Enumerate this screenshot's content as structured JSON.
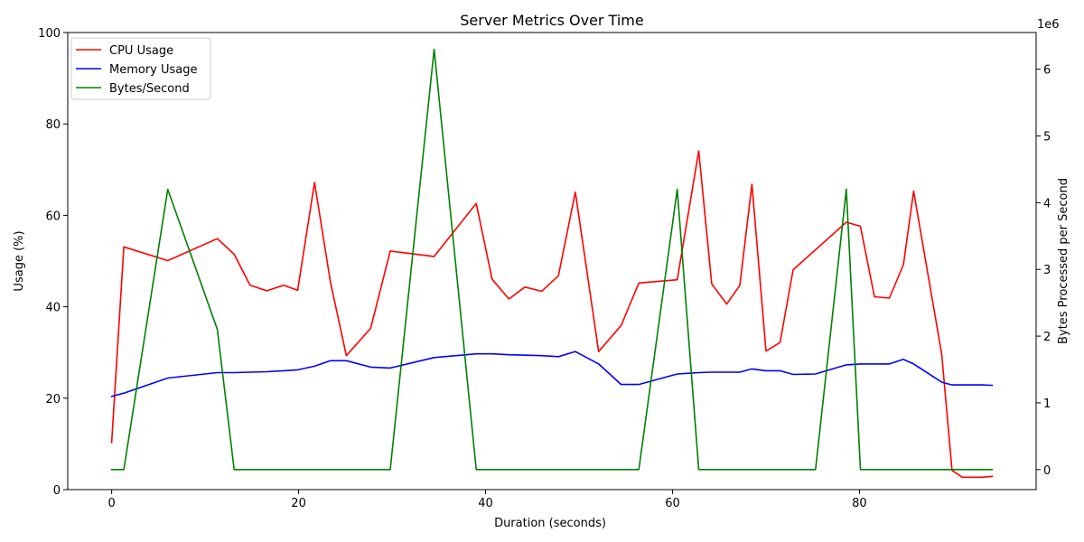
{
  "chart_data": {
    "type": "line",
    "title": "Server Metrics Over Time",
    "xlabel": "Duration (seconds)",
    "ylabel_left": "Usage (%)",
    "ylabel_right": "Bytes Processed per Second",
    "right_axis_multiplier": "1e6",
    "xlim": [
      -4.7,
      98.9
    ],
    "ylim_left": [
      0,
      100
    ],
    "ylim_right": [
      -300000,
      6550000
    ],
    "x_ticks": [
      0,
      20,
      40,
      60,
      80
    ],
    "y_ticks_left": [
      0,
      20,
      40,
      60,
      80,
      100
    ],
    "y_ticks_right": [
      0,
      1,
      2,
      3,
      4,
      5,
      6
    ],
    "legend_position": "upper-left",
    "series": [
      {
        "name": "CPU Usage",
        "axis": "left",
        "color": "#ff0000",
        "points": [
          [
            0,
            10.3
          ],
          [
            1.3,
            53.1
          ],
          [
            6,
            50.1
          ],
          [
            11.3,
            54.9
          ],
          [
            13.1,
            51.5
          ],
          [
            14.8,
            44.7
          ],
          [
            16.6,
            43.5
          ],
          [
            18.4,
            44.7
          ],
          [
            19.9,
            43.6
          ],
          [
            21.7,
            67.2
          ],
          [
            23.4,
            45.4
          ],
          [
            25.1,
            29.3
          ],
          [
            27.7,
            35.3
          ],
          [
            29.8,
            52.2
          ],
          [
            34.5,
            51
          ],
          [
            39,
            62.6
          ],
          [
            40.7,
            46
          ],
          [
            42.5,
            41.7
          ],
          [
            44.2,
            44.3
          ],
          [
            46,
            43.4
          ],
          [
            47.8,
            46.8
          ],
          [
            49.6,
            65.1
          ],
          [
            52.1,
            30.2
          ],
          [
            54.5,
            35.9
          ],
          [
            56.4,
            45.2
          ],
          [
            60.5,
            45.9
          ],
          [
            62.8,
            74.1
          ],
          [
            64.2,
            45
          ],
          [
            65.8,
            40.6
          ],
          [
            67.2,
            44.7
          ],
          [
            68.5,
            66.8
          ],
          [
            70,
            30.3
          ],
          [
            71.5,
            32.2
          ],
          [
            72.9,
            48.1
          ],
          [
            78.6,
            58.5
          ],
          [
            80.1,
            57.6
          ],
          [
            81.6,
            42.2
          ],
          [
            83.2,
            41.9
          ],
          [
            84.7,
            49.2
          ],
          [
            85.8,
            65.3
          ],
          [
            88.8,
            29.6
          ],
          [
            89.9,
            4.2
          ],
          [
            91,
            2.7
          ],
          [
            93.1,
            2.7
          ],
          [
            94.2,
            2.9
          ]
        ]
      },
      {
        "name": "Memory Usage",
        "axis": "left",
        "color": "#0000ff",
        "points": [
          [
            0,
            20.4
          ],
          [
            1.3,
            21.1
          ],
          [
            6,
            24.4
          ],
          [
            11.3,
            25.6
          ],
          [
            13.1,
            25.6
          ],
          [
            16.6,
            25.8
          ],
          [
            18.4,
            26
          ],
          [
            19.9,
            26.2
          ],
          [
            21.7,
            27
          ],
          [
            23.4,
            28.2
          ],
          [
            25.1,
            28.2
          ],
          [
            27.7,
            26.8
          ],
          [
            29.8,
            26.6
          ],
          [
            34.5,
            28.9
          ],
          [
            39,
            29.7
          ],
          [
            40.7,
            29.7
          ],
          [
            42.5,
            29.5
          ],
          [
            46,
            29.3
          ],
          [
            47.8,
            29.1
          ],
          [
            49.6,
            30.2
          ],
          [
            52.1,
            27.5
          ],
          [
            54.5,
            23
          ],
          [
            56.4,
            23
          ],
          [
            60.5,
            25.3
          ],
          [
            62.8,
            25.6
          ],
          [
            64.2,
            25.7
          ],
          [
            67.2,
            25.7
          ],
          [
            68.5,
            26.4
          ],
          [
            70,
            26
          ],
          [
            71.5,
            26
          ],
          [
            72.9,
            25.2
          ],
          [
            75.3,
            25.3
          ],
          [
            78.6,
            27.3
          ],
          [
            80.1,
            27.5
          ],
          [
            83.2,
            27.5
          ],
          [
            84.7,
            28.5
          ],
          [
            85.8,
            27.5
          ],
          [
            88.8,
            23.5
          ],
          [
            89.9,
            22.9
          ],
          [
            93.1,
            22.9
          ],
          [
            94.2,
            22.8
          ]
        ]
      },
      {
        "name": "Bytes/Second",
        "axis": "right",
        "color": "#008000",
        "points": [
          [
            0,
            0
          ],
          [
            1.3,
            0
          ],
          [
            6,
            4200000
          ],
          [
            11.3,
            2100000
          ],
          [
            13.1,
            0
          ],
          [
            29.8,
            0
          ],
          [
            34.5,
            6300000
          ],
          [
            39,
            0
          ],
          [
            56.4,
            0
          ],
          [
            60.5,
            4200000
          ],
          [
            62.8,
            0
          ],
          [
            75.3,
            0
          ],
          [
            78.6,
            4200000
          ],
          [
            80.1,
            0
          ],
          [
            94.2,
            0
          ]
        ]
      }
    ]
  }
}
